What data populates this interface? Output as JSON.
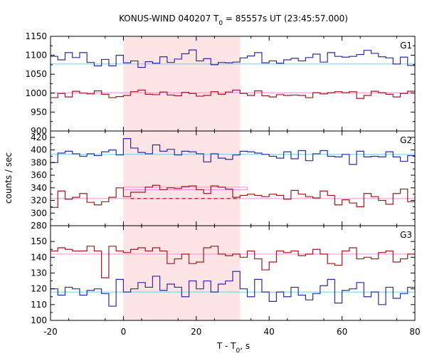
{
  "chart_data": {
    "type": "line",
    "title": "KONUS-WIND 040207 T0 = 85557s UT (23:45:57.000)",
    "title_parts": {
      "prefix": "KONUS-WIND 040207 T",
      "sub": "0",
      "suffix": " = 85557s UT (23:45:57.000)"
    },
    "xlabel": "T - T0, s",
    "xlabel_parts": {
      "prefix": "T - T",
      "sub": "0",
      "suffix": ", s"
    },
    "ylabel": "counts / sec",
    "xlim": [
      -20,
      80
    ],
    "x_ticks": [
      -20,
      0,
      20,
      40,
      60,
      80
    ],
    "x_tick_labels": [
      "-20",
      "0",
      "20",
      "40",
      "60",
      "80"
    ],
    "highlight_interval": {
      "x0": 0.0,
      "x1": 32.0,
      "color": "#ffe4e6"
    },
    "bin_width": 2.0,
    "bin_start": -20,
    "panels": [
      {
        "name": "G1",
        "ylim": [
          900,
          1150
        ],
        "y_ticks": [
          900,
          950,
          1000,
          1050,
          1100,
          1150
        ],
        "y_tick_labels": [
          "900",
          "950",
          "1000",
          "1050",
          "1100",
          "1150"
        ],
        "show_bottom_label": true,
        "series": [
          {
            "color": "#2a2aa8",
            "bg_level": 1077,
            "bg_color": "#6ccfe3",
            "values": [
              1097,
              1088,
              1107,
              1094,
              1107,
              1081,
              1072,
              1089,
              1072,
              1100,
              1080,
              1085,
              1068,
              1083,
              1079,
              1096,
              1081,
              1090,
              1104,
              1114,
              1085,
              1091,
              1075,
              1081,
              1080,
              1082,
              1093,
              1098,
              1107,
              1080,
              1085,
              1079,
              1088,
              1092,
              1085,
              1094,
              1103,
              1082,
              1107,
              1097,
              1095,
              1097,
              1102,
              1113,
              1105,
              1096,
              1093,
              1077,
              1095,
              1073
            ]
          },
          {
            "color": "#a01818",
            "bg_level": 1001,
            "bg_color": "#ee8fd6",
            "values": [
              988,
              999,
              990,
              1005,
              1000,
              998,
              1006,
              997,
              988,
              991,
              994,
              1004,
              1008,
              997,
              996,
              1003,
              995,
              993,
              1002,
              999,
              992,
              994,
              1004,
              997,
              1003,
              1008,
              999,
              994,
              1006,
              993,
              990,
              996,
              994,
              995,
              994,
              988,
              1001,
              998,
              1001,
              1004,
              1001,
              1004,
              986,
              994,
              1005,
              1001,
              997,
              990,
              999,
              1005
            ]
          }
        ]
      },
      {
        "name": "G2",
        "ylim": [
          280,
          430
        ],
        "y_ticks": [
          280,
          300,
          320,
          340,
          360,
          380,
          400,
          420
        ],
        "y_tick_labels": [
          "280",
          "300",
          "320",
          "340",
          "360",
          "380",
          "400",
          "420"
        ],
        "show_bottom_label": true,
        "series": [
          {
            "color": "#2a2aa8",
            "bg_level": 393,
            "bg_color": "#6ccfe3",
            "values": [
              380,
              395,
              398,
              394,
              390,
              394,
              391,
              397,
              400,
              392,
              418,
              403,
              396,
              394,
              408,
              398,
              401,
              392,
              398,
              397,
              394,
              381,
              394,
              387,
              385,
              392,
              398,
              397,
              395,
              393,
              390,
              387,
              397,
              386,
              399,
              383,
              394,
              399,
              390,
              389,
              393,
              377,
              398,
              389,
              390,
              389,
              397,
              389,
              382,
              391
            ]
          },
          {
            "color": "#a01818",
            "bg_level": 323,
            "bg_color": "#ee8fd6",
            "values": [
              309,
              335,
              322,
              325,
              331,
              317,
              313,
              318,
              325,
              340,
              326,
              333,
              333,
              341,
              344,
              337,
              340,
              339,
              342,
              343,
              337,
              331,
              343,
              341,
              338,
              325,
              328,
              330,
              328,
              326,
              330,
              328,
              322,
              336,
              330,
              326,
              324,
              335,
              328,
              313,
              321,
              316,
              310,
              331,
              326,
              320,
              314,
              331,
              338,
              318
            ]
          }
        ],
        "dashed_level": {
          "value": 323,
          "x0": 2.0,
          "x1": 32.0,
          "color": "#a01818"
        },
        "box": {
          "x0": 0.0,
          "x1": 34.0,
          "y0": 337,
          "y1": 341,
          "color": "#ee8fd6"
        }
      },
      {
        "name": "G3",
        "ylim": [
          100,
          160
        ],
        "y_ticks": [
          100,
          110,
          120,
          130,
          140,
          150
        ],
        "y_tick_labels": [
          "100",
          "110",
          "120",
          "130",
          "140",
          "150"
        ],
        "show_bottom_label": true,
        "series": [
          {
            "color": "#a01818",
            "bg_level": 142,
            "bg_color": "#ee8fd6",
            "values": [
              144,
              146,
              145,
              144,
              144,
              147,
              144,
              127,
              147,
              144,
              143,
              145,
              146,
              144,
              146,
              144,
              136,
              139,
              142,
              136,
              137,
              146,
              147,
              142,
              141,
              142,
              140,
              144,
              139,
              132,
              137,
              144,
              143,
              144,
              141,
              142,
              145,
              142,
              136,
              135,
              144,
              146,
              139,
              140,
              139,
              143,
              144,
              137,
              139,
              142
            ]
          },
          {
            "color": "#2a2aa8",
            "bg_level": 118,
            "bg_color": "#6ccfe3",
            "values": [
              120,
              116,
              121,
              120,
              116,
              119,
              120,
              117,
              109,
              126,
              118,
              120,
              124,
              121,
              128,
              119,
              123,
              121,
              115,
              125,
              120,
              125,
              118,
              123,
              125,
              131,
              120,
              115,
              126,
              118,
              112,
              118,
              115,
              121,
              116,
              113,
              117,
              122,
              126,
              111,
              119,
              120,
              124,
              115,
              118,
              110,
              121,
              114,
              117,
              121
            ]
          }
        ]
      }
    ]
  }
}
